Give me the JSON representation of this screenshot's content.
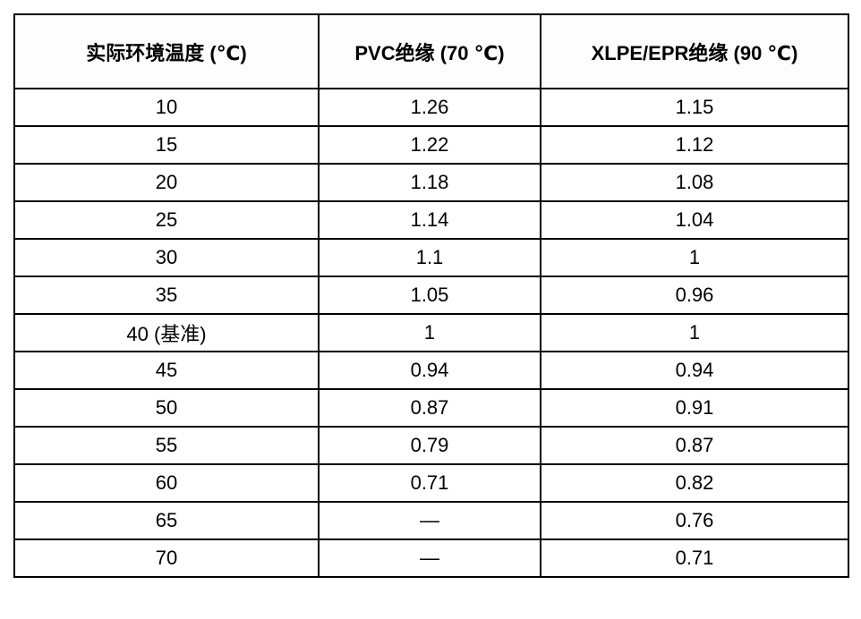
{
  "chart_data": {
    "type": "table",
    "title": "",
    "columns": [
      "实际环境温度 (℃)",
      "PVC绝缘 (70 ℃)",
      "XLPE/EPR绝缘 (90 ℃)"
    ],
    "rows": [
      [
        "10",
        "1.26",
        "1.15"
      ],
      [
        "15",
        "1.22",
        "1.12"
      ],
      [
        "20",
        "1.18",
        "1.08"
      ],
      [
        "25",
        "1.14",
        "1.04"
      ],
      [
        "30",
        "1.1",
        "1"
      ],
      [
        "35",
        "1.05",
        "0.96"
      ],
      [
        "40 (基准)",
        "1",
        "1"
      ],
      [
        "45",
        "0.94",
        "0.94"
      ],
      [
        "50",
        "0.87",
        "0.91"
      ],
      [
        "55",
        "0.79",
        "0.87"
      ],
      [
        "60",
        "0.71",
        "0.82"
      ],
      [
        "65",
        "—",
        "0.76"
      ],
      [
        "70",
        "—",
        "0.71"
      ]
    ],
    "layout": {
      "grid": true,
      "header_bold": true,
      "border_color": "#000000",
      "background_color": "#ffffff",
      "text_color": "#000000"
    }
  }
}
